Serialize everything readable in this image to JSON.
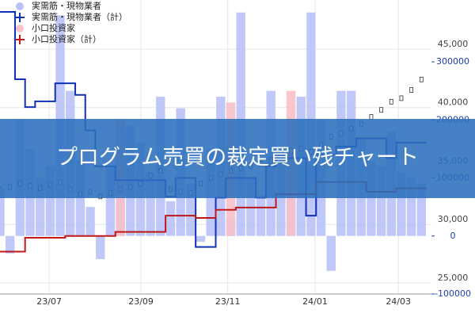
{
  "chart_data": {
    "type": "combo",
    "banner": "プログラム売買の裁定買い残チャート",
    "xlim": [
      0,
      43
    ],
    "xticks": [
      {
        "value": 4.9,
        "label": "23/07"
      },
      {
        "value": 14.05,
        "label": "23/09"
      },
      {
        "value": 22.7,
        "label": "23/11"
      },
      {
        "value": 31.4,
        "label": "24/01"
      },
      {
        "value": 39.7,
        "label": "24/03"
      }
    ],
    "ylim": [
      24050,
      49200
    ],
    "yticks": [
      {
        "value": 25000,
        "label": "25,000"
      },
      {
        "value": 30000,
        "label": "30,000"
      },
      {
        "value": 35000,
        "label": "35,000"
      },
      {
        "value": 40000,
        "label": "40,000"
      },
      {
        "value": 45000,
        "label": "45,000"
      }
    ],
    "y2lim": [
      -100000,
      406500
    ],
    "y2ticks": [
      -100000,
      0,
      100000,
      200000,
      300000
    ],
    "grid": true,
    "legend": "top-left",
    "series": [
      {
        "name": "実需筋・現物業者",
        "kind": "bar",
        "axis": "y2",
        "color": "#b8c2f8",
        "values": [
          80000,
          -30000,
          200000,
          150000,
          100000,
          120000,
          380000,
          250000,
          130000,
          50000,
          -40000,
          120000,
          180000,
          190000,
          160000,
          110000,
          240000,
          60000,
          220000,
          90000,
          -10000,
          150000,
          240000,
          30000,
          385000,
          100000,
          70000,
          250000,
          140000,
          160000,
          240000,
          385000,
          200000,
          -60000,
          250000,
          250000,
          170000,
          130000,
          120000,
          180000,
          110000,
          100000,
          90000
        ]
      },
      {
        "name": "実需筋・現物業者（計）",
        "kind": "step",
        "axis": "y2",
        "color": "#1030b8",
        "values": [
          386000,
          386000,
          270000,
          222000,
          232000,
          232000,
          263000,
          263000,
          243000,
          182000,
          120000,
          120000,
          96000,
          96000,
          96000,
          96000,
          96000,
          68000,
          100000,
          100000,
          -19000,
          -19000,
          66000,
          100000,
          100000,
          100000,
          66000,
          120000,
          134000,
          134000,
          134000,
          35000,
          140000,
          140000,
          154000,
          154000,
          168000,
          168000,
          168000,
          134000,
          161000,
          161000,
          161000
        ]
      },
      {
        "name": "小口投資家",
        "kind": "bar",
        "axis": "y2",
        "color": "#f8c0c8",
        "values": [
          null,
          null,
          null,
          null,
          null,
          null,
          null,
          null,
          null,
          null,
          null,
          null,
          200000,
          null,
          null,
          null,
          null,
          null,
          null,
          null,
          null,
          null,
          null,
          230000,
          null,
          null,
          null,
          null,
          null,
          250000,
          null,
          null,
          null,
          null,
          null,
          null,
          null,
          null,
          null,
          null,
          null,
          null,
          null
        ]
      },
      {
        "name": "小口投資家（計）",
        "kind": "step",
        "axis": "y2",
        "color": "#c01818",
        "values": [
          -27000,
          -27000,
          -27000,
          -3000,
          -3000,
          -3000,
          -3000,
          0,
          0,
          0,
          0,
          0,
          7000,
          7000,
          7000,
          7000,
          7000,
          35000,
          35000,
          35000,
          31000,
          31000,
          45000,
          45000,
          49000,
          49000,
          49000,
          49000,
          72000,
          72000,
          72000,
          72000,
          93000,
          93000,
          93000,
          93000,
          93000,
          76000,
          76000,
          76000,
          82000,
          82000,
          82000
        ]
      }
    ],
    "price": {
      "color": "#333333",
      "values": [
        33000,
        33200,
        33500,
        33300,
        33100,
        33400,
        33600,
        33000,
        32600,
        32800,
        32400,
        32700,
        33000,
        33200,
        33500,
        34200,
        34600,
        33000,
        32800,
        32700,
        33500,
        34000,
        34300,
        34600,
        34800,
        35000,
        35200,
        35500,
        36000,
        36300,
        36500,
        36200,
        36800,
        37500,
        37800,
        38200,
        38600,
        39200,
        39800,
        40500,
        40800,
        41500,
        42400
      ]
    }
  }
}
